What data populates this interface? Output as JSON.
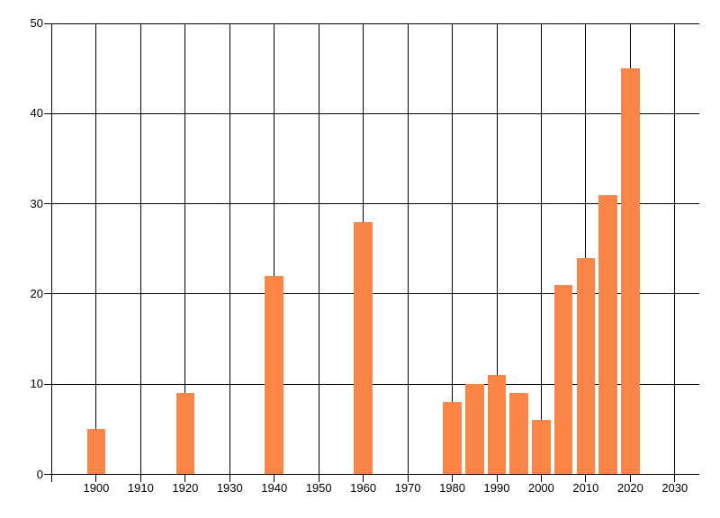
{
  "chart_data": {
    "type": "bar",
    "title": "",
    "xlabel": "",
    "ylabel": "",
    "x": [
      1900,
      1920,
      1940,
      1960,
      1980,
      1985,
      1990,
      1995,
      2000,
      2005,
      2010,
      2015,
      2020
    ],
    "values": [
      5,
      9,
      22,
      28,
      8,
      10,
      11,
      9,
      6,
      21,
      24,
      31,
      45
    ],
    "x_ticks": [
      1900,
      1910,
      1920,
      1930,
      1940,
      1950,
      1960,
      1970,
      1980,
      1990,
      2000,
      2010,
      2020,
      2030
    ],
    "y_ticks": [
      0,
      10,
      20,
      30,
      40,
      50
    ],
    "xlim": [
      1889.9,
      2035.5
    ],
    "ylim": [
      0,
      50
    ],
    "bar_width_years": 4.15,
    "grid": true,
    "legend_position": "none",
    "colors": {
      "bar": "#fb8547",
      "axis": "#000000",
      "text": "#000000",
      "background": "#ffffff"
    }
  }
}
